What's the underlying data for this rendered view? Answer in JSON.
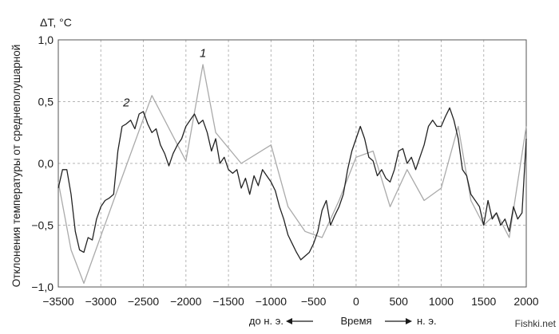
{
  "chart_data": {
    "type": "line",
    "title": "",
    "ylabel": "Отклонения температуры от среднеполушарной",
    "yunit": "ΔT, °C",
    "xlabel": "Время",
    "era_left": "до н. э.",
    "era_right": "н. э.",
    "xlim": [
      -3500,
      2000
    ],
    "ylim": [
      -1.0,
      1.0
    ],
    "x_ticks": [
      -3500,
      -3000,
      -2500,
      -2000,
      -1500,
      -1000,
      -500,
      0,
      500,
      1000,
      1500,
      2000
    ],
    "x_tick_labels": [
      "−3500",
      "−3000",
      "−2500",
      "−2000",
      "−1500",
      "−1000",
      "−500",
      "0",
      "500",
      "1000",
      "1500",
      "2000"
    ],
    "y_ticks": [
      -1.0,
      -0.5,
      0.0,
      0.5,
      1.0
    ],
    "y_tick_labels": [
      "−1,0",
      "−0,5",
      "0,0",
      "0,5",
      "1,0"
    ],
    "grid": true,
    "grid_style": "dashed",
    "colors": {
      "series1": "#aaaaaa",
      "series2": "#222222",
      "grid": "#b5b5b5"
    },
    "annotations": [
      {
        "text": "1",
        "x": -1800,
        "y": 0.86
      },
      {
        "text": "2",
        "x": -2700,
        "y": 0.46
      }
    ],
    "series": [
      {
        "name": "1",
        "x": [
          -3500,
          -3350,
          -3200,
          -2850,
          -2400,
          -2000,
          -1800,
          -1650,
          -1350,
          -1000,
          -800,
          -600,
          -400,
          -200,
          0,
          200,
          400,
          600,
          800,
          1000,
          1200,
          1350,
          1500,
          1650,
          1800,
          2000
        ],
        "y": [
          -0.15,
          -0.7,
          -0.97,
          -0.3,
          0.55,
          0.02,
          0.8,
          0.25,
          0.0,
          0.15,
          -0.35,
          -0.55,
          -0.6,
          -0.3,
          0.05,
          0.1,
          -0.35,
          -0.05,
          -0.3,
          -0.2,
          0.3,
          -0.3,
          -0.5,
          -0.4,
          -0.6,
          0.3
        ]
      },
      {
        "name": "2",
        "x": [
          -3500,
          -3450,
          -3400,
          -3350,
          -3300,
          -3250,
          -3200,
          -3150,
          -3100,
          -3050,
          -3000,
          -2950,
          -2900,
          -2850,
          -2800,
          -2750,
          -2700,
          -2650,
          -2600,
          -2550,
          -2500,
          -2450,
          -2400,
          -2350,
          -2300,
          -2250,
          -2200,
          -2150,
          -2100,
          -2050,
          -2000,
          -1950,
          -1900,
          -1850,
          -1800,
          -1750,
          -1700,
          -1650,
          -1600,
          -1550,
          -1500,
          -1450,
          -1400,
          -1350,
          -1300,
          -1250,
          -1200,
          -1150,
          -1100,
          -1050,
          -1000,
          -950,
          -900,
          -850,
          -800,
          -750,
          -700,
          -650,
          -600,
          -550,
          -500,
          -450,
          -400,
          -350,
          -300,
          -250,
          -200,
          -150,
          -100,
          -50,
          0,
          50,
          100,
          150,
          200,
          250,
          300,
          350,
          400,
          450,
          500,
          550,
          600,
          650,
          700,
          750,
          800,
          850,
          900,
          950,
          1000,
          1050,
          1100,
          1150,
          1200,
          1250,
          1300,
          1350,
          1400,
          1450,
          1500,
          1550,
          1600,
          1650,
          1700,
          1750,
          1800,
          1850,
          1900,
          1950,
          2000
        ],
        "y": [
          -0.2,
          -0.05,
          -0.05,
          -0.25,
          -0.55,
          -0.7,
          -0.72,
          -0.6,
          -0.62,
          -0.45,
          -0.35,
          -0.3,
          -0.28,
          -0.25,
          0.1,
          0.3,
          0.32,
          0.35,
          0.28,
          0.4,
          0.42,
          0.32,
          0.25,
          0.28,
          0.15,
          0.08,
          -0.02,
          0.08,
          0.15,
          0.2,
          0.3,
          0.35,
          0.4,
          0.32,
          0.35,
          0.25,
          0.1,
          0.2,
          0.0,
          0.05,
          -0.05,
          -0.08,
          -0.05,
          -0.2,
          -0.12,
          -0.25,
          -0.1,
          -0.18,
          -0.05,
          -0.1,
          -0.15,
          -0.22,
          -0.35,
          -0.45,
          -0.58,
          -0.65,
          -0.72,
          -0.78,
          -0.75,
          -0.72,
          -0.65,
          -0.55,
          -0.38,
          -0.3,
          -0.5,
          -0.42,
          -0.35,
          -0.25,
          -0.05,
          0.1,
          0.2,
          0.3,
          0.2,
          0.05,
          0.02,
          -0.1,
          -0.05,
          -0.12,
          -0.15,
          -0.05,
          0.1,
          0.12,
          0.0,
          0.05,
          -0.05,
          0.05,
          0.15,
          0.3,
          0.35,
          0.3,
          0.3,
          0.38,
          0.45,
          0.35,
          0.2,
          -0.05,
          -0.1,
          -0.25,
          -0.3,
          -0.35,
          -0.5,
          -0.3,
          -0.45,
          -0.4,
          -0.5,
          -0.45,
          -0.55,
          -0.35,
          -0.45,
          -0.4,
          0.2
        ]
      }
    ]
  },
  "watermark": "Fishki.net"
}
